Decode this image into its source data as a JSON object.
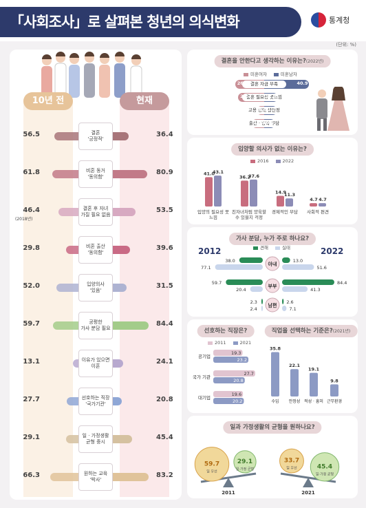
{
  "header": {
    "title": "「사회조사」로 살펴본 청년의 의식변화",
    "agency": "통계청",
    "unit": "(단위: %)"
  },
  "colors": {
    "navy": "#2d3a6b",
    "before_tab": "#e7c49a",
    "now_tab": "#c59a9c",
    "unmarried_female": "#c98f96",
    "unmarried_male": "#5b6c9a",
    "y2016": "#c86d7e",
    "y2022": "#8c8cb6",
    "wife": "#8c9ac4",
    "husband": "#2a8c57"
  },
  "left": {
    "tab_before": "10년 전",
    "tab_now": "현재",
    "chart_data": {
      "type": "bar",
      "title": "",
      "series": [
        {
          "name": "10년 전"
        },
        {
          "name": "현재"
        }
      ],
      "rows": [
        {
          "label": "결혼\n'긍정적'",
          "before": 56.5,
          "now": 36.4,
          "before_text": "56.5",
          "now_text": "36.4",
          "note": "",
          "color": "#a8757a"
        },
        {
          "label": "비혼 동거\n'동의함'",
          "before": 61.8,
          "now": 80.9,
          "before_text": "61.8",
          "now_text": "80.9",
          "note": "",
          "color": "#c27a88"
        },
        {
          "label": "결혼 후 자녀\n가질 필요 없음",
          "before": 46.4,
          "now": 53.5,
          "before_text": "46.4",
          "now_text": "53.5",
          "note": "(2018년)",
          "color": "#d7a9c1"
        },
        {
          "label": "비혼 출산\n'동의함'",
          "before": 29.8,
          "now": 39.6,
          "before_text": "29.8",
          "now_text": "39.6",
          "note": "",
          "color": "#c96a85"
        },
        {
          "label": "입양의사\n'있음'",
          "before": 52.0,
          "now": 31.5,
          "before_text": "52.0",
          "now_text": "31.5",
          "note": "",
          "color": "#aeb3d2"
        },
        {
          "label": "공평한\n가사 분담 필요",
          "before": 59.7,
          "now": 84.4,
          "before_text": "59.7",
          "now_text": "84.4",
          "note": "",
          "color": "#a3cc8a"
        },
        {
          "label": "이유가 있으면\n이혼",
          "before": 13.1,
          "now": 24.1,
          "before_text": "13.1",
          "now_text": "24.1",
          "note": "",
          "color": "#b8a9cf"
        },
        {
          "label": "선호하는 직장\n'국가기관'",
          "before": 27.7,
          "now": 20.8,
          "before_text": "27.7",
          "now_text": "20.8",
          "note": "",
          "color": "#8fa7d6"
        },
        {
          "label": "일 · 가정생활\n균형 중시",
          "before": 29.1,
          "now": 45.4,
          "before_text": "29.1",
          "now_text": "45.4",
          "note": "",
          "color": "#d5c1a0"
        },
        {
          "label": "원하는 교육\n'박사'",
          "before": 66.3,
          "now": 83.2,
          "before_text": "66.3",
          "now_text": "83.2",
          "note": "",
          "color": "#e0c39a"
        }
      ]
    }
  },
  "marriage": {
    "title": "결혼을 안한다고 생각하는 이유는?",
    "title_note": "(2022년)",
    "legend_female": "미혼여자",
    "legend_male": "미혼남자",
    "chart_data": {
      "type": "bar",
      "title": "결혼을 안한다고 생각하는 이유는?",
      "rows": [
        {
          "label": "결혼 자금 부족",
          "female": 26.4,
          "male": 40.9,
          "female_text": "26.4",
          "male_text": "40.9"
        },
        {
          "label": "결혼 필요성 못느낌",
          "female": 23.7,
          "male": 12.3,
          "female_text": "23.7",
          "male_text": "12.3"
        },
        {
          "label": "고용 상태 불안정",
          "female": 6.8,
          "male": 11.7,
          "female_text": "6.8",
          "male_text": "11.7"
        },
        {
          "label": "출산 · 양육 부담",
          "female": 11.5,
          "male": 10.1,
          "female_text": "11.5",
          "male_text": "10.1"
        }
      ]
    }
  },
  "adoption": {
    "title": "입양할 의사가 없는 이유는?",
    "legend_2016": "2016",
    "legend_2022": "2022",
    "chart_data": {
      "type": "bar",
      "title": "입양할 의사가 없는 이유는?",
      "series": [
        {
          "name": "2016"
        },
        {
          "name": "2022"
        }
      ],
      "categories": [
        "입양의 필요성 못 느낌",
        "친자녀처럼 양육할 수 있을지 걱정",
        "경제적인 부담",
        "사회적 편견"
      ],
      "values_2016": [
        41.0,
        36.2,
        14.9,
        4.7
      ],
      "values_2022": [
        43.1,
        37.6,
        11.3,
        4.7
      ],
      "labels_2016": [
        "41.0",
        "36.2",
        "14.9",
        "4.7"
      ],
      "labels_2022": [
        "43.1",
        "37.6",
        "11.3",
        "4.7"
      ],
      "ylim": [
        0,
        50
      ]
    }
  },
  "housework": {
    "title": "가사 분담, 누가 주로 하나요?",
    "year_left": "2012",
    "year_right": "2022",
    "legend_ideal": "견해",
    "legend_real": "실태",
    "chart_data": {
      "type": "bar",
      "title": "가사 분담, 누가 주로 하나요?",
      "rows": [
        {
          "label": "아내",
          "ideal_2012": 38.0,
          "real_2012": 77.1,
          "ideal_2022": 13.0,
          "real_2022": 51.6
        },
        {
          "label": "부부",
          "ideal_2012": 59.7,
          "real_2012": 20.4,
          "ideal_2022": 84.4,
          "real_2022": 41.3
        },
        {
          "label": "남편",
          "ideal_2012": 2.3,
          "real_2012": 2.4,
          "ideal_2022": 2.6,
          "real_2022": 7.1
        }
      ],
      "text": {
        "ideal_2012": [
          "38.0",
          "59.7",
          "2.3"
        ],
        "real_2012": [
          "77.1",
          "20.4",
          "2.4"
        ],
        "ideal_2022": [
          "13.0",
          "84.4",
          "2.6"
        ],
        "real_2022": [
          "51.6",
          "41.3",
          "7.1"
        ]
      }
    }
  },
  "workplace": {
    "title": "선호하는 직장은?",
    "legend_2011": "2011",
    "legend_2021": "2021",
    "chart_data": {
      "type": "bar",
      "title": "선호하는 직장은?",
      "categories": [
        "공기업",
        "국가 기관",
        "대기업"
      ],
      "values_2011": [
        19.3,
        27.7,
        19.6
      ],
      "values_2021": [
        23.2,
        20.8,
        20.2
      ],
      "labels_2011": [
        "19.3",
        "27.7",
        "19.6"
      ],
      "labels_2021": [
        "23.2",
        "20.8",
        "20.2"
      ]
    }
  },
  "job_criteria": {
    "title": "직업을 선택하는 기준은?",
    "title_note": "(2021년)",
    "chart_data": {
      "type": "bar",
      "title": "직업을 선택하는 기준은?",
      "categories": [
        "수입",
        "안정성",
        "적성 · 흥미",
        "근무환경"
      ],
      "values": [
        35.8,
        22.1,
        19.1,
        9.8
      ],
      "labels": [
        "35.8",
        "22.1",
        "19.1",
        "9.8"
      ]
    }
  },
  "balance": {
    "title": "일과 가정생활의 균형을 원하나요?",
    "chart_data": {
      "type": "bar",
      "title": "일과 가정생활의 균형을 원하나요?",
      "years": [
        "2011",
        "2021"
      ],
      "work_first": [
        59.7,
        33.7
      ],
      "balance": [
        29.1,
        45.4
      ],
      "work_text": [
        "59.7",
        "33.7"
      ],
      "balance_text": [
        "29.1",
        "45.4"
      ],
      "work_label": "일 우선",
      "balance_label": "일·가정 균형"
    }
  }
}
